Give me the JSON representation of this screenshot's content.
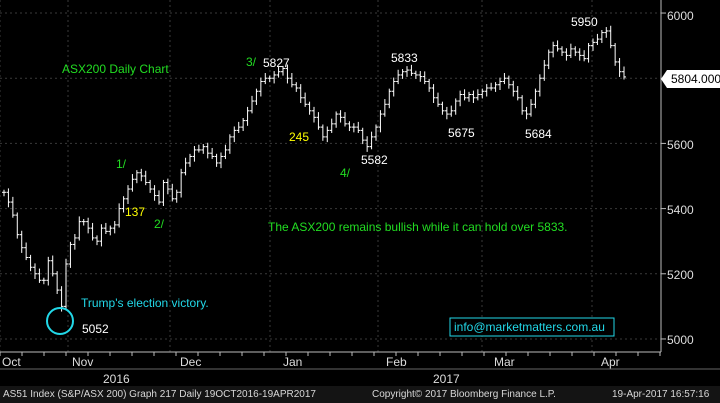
{
  "chart_data": {
    "type": "ohlc-bar",
    "title": "ASX200 Daily Chart",
    "ylim": [
      4960,
      6040
    ],
    "y_ticks": [
      5000,
      5200,
      5400,
      5600,
      5800,
      6000
    ],
    "y_tick_labels": [
      "5000",
      "5200",
      "5400",
      "5600",
      "5800",
      "6000"
    ],
    "last_price_label": "5804.000",
    "last_price": 5804,
    "month_labels": [
      "Oct",
      "Nov",
      "Dec",
      "Jan",
      "Feb",
      "Mar",
      "Apr"
    ],
    "year_labels": [
      "2016",
      "2017"
    ],
    "closes": [
      5450,
      5420,
      5380,
      5320,
      5280,
      5250,
      5220,
      5200,
      5180,
      5180,
      5240,
      5200,
      5150,
      5100,
      5230,
      5290,
      5310,
      5360,
      5360,
      5340,
      5310,
      5300,
      5340,
      5330,
      5340,
      5350,
      5400,
      5430,
      5460,
      5490,
      5510,
      5500,
      5480,
      5460,
      5440,
      5420,
      5480,
      5460,
      5430,
      5450,
      5510,
      5540,
      5560,
      5580,
      5580,
      5590,
      5570,
      5560,
      5540,
      5560,
      5580,
      5620,
      5640,
      5650,
      5670,
      5700,
      5730,
      5760,
      5790,
      5800,
      5800,
      5810,
      5820,
      5830,
      5800,
      5780,
      5770,
      5740,
      5720,
      5700,
      5680,
      5650,
      5620,
      5640,
      5660,
      5690,
      5680,
      5660,
      5650,
      5650,
      5640,
      5610,
      5590,
      5620,
      5650,
      5690,
      5720,
      5760,
      5790,
      5810,
      5820,
      5825,
      5815,
      5810,
      5805,
      5790,
      5770,
      5740,
      5720,
      5700,
      5690,
      5700,
      5730,
      5750,
      5740,
      5750,
      5740,
      5750,
      5760,
      5770,
      5770,
      5780,
      5790,
      5800,
      5780,
      5760,
      5740,
      5700,
      5690,
      5720,
      5760,
      5800,
      5840,
      5880,
      5900,
      5890,
      5880,
      5870,
      5890,
      5880,
      5870,
      5860,
      5900,
      5910,
      5920,
      5940,
      5945,
      5900,
      5850,
      5820,
      5804
    ],
    "annotations": [
      {
        "text": "3/",
        "color": "#22dd22"
      },
      {
        "text": "5827",
        "color": "#ffffff"
      },
      {
        "text": "5833",
        "color": "#ffffff"
      },
      {
        "text": "5950",
        "color": "#ffffff"
      },
      {
        "text": "1/",
        "color": "#22dd22"
      },
      {
        "text": "137",
        "color": "#ffff00"
      },
      {
        "text": "2/",
        "color": "#22dd22"
      },
      {
        "text": "245",
        "color": "#ffff00"
      },
      {
        "text": "4/",
        "color": "#22dd22"
      },
      {
        "text": "5582",
        "color": "#ffffff"
      },
      {
        "text": "5675",
        "color": "#ffffff"
      },
      {
        "text": "5684",
        "color": "#ffffff"
      },
      {
        "text": "Trump's election victory.",
        "color": "#22d8e8"
      },
      {
        "text": "5052",
        "color": "#ffffff"
      },
      {
        "text": "The ASX200 remains bullish while it can hold over 5833.",
        "color": "#22dd22"
      },
      {
        "text": "info@marketmatters.com.au",
        "color": "#22d8e8"
      }
    ],
    "grid": true,
    "colors": {
      "background": "#000000",
      "bars": "#ffffff",
      "grid": "#3a3a3a",
      "green": "#22dd22",
      "cyan": "#22d8e8",
      "yellow": "#ffff00"
    }
  },
  "footer": {
    "left": "AS51 Index (S&P/ASX 200) Graph 217  Daily 19OCT2016-19APR2017",
    "center": "Copyright© 2017 Bloomberg Finance L.P.",
    "right": "19-Apr-2017 16:57:16"
  }
}
